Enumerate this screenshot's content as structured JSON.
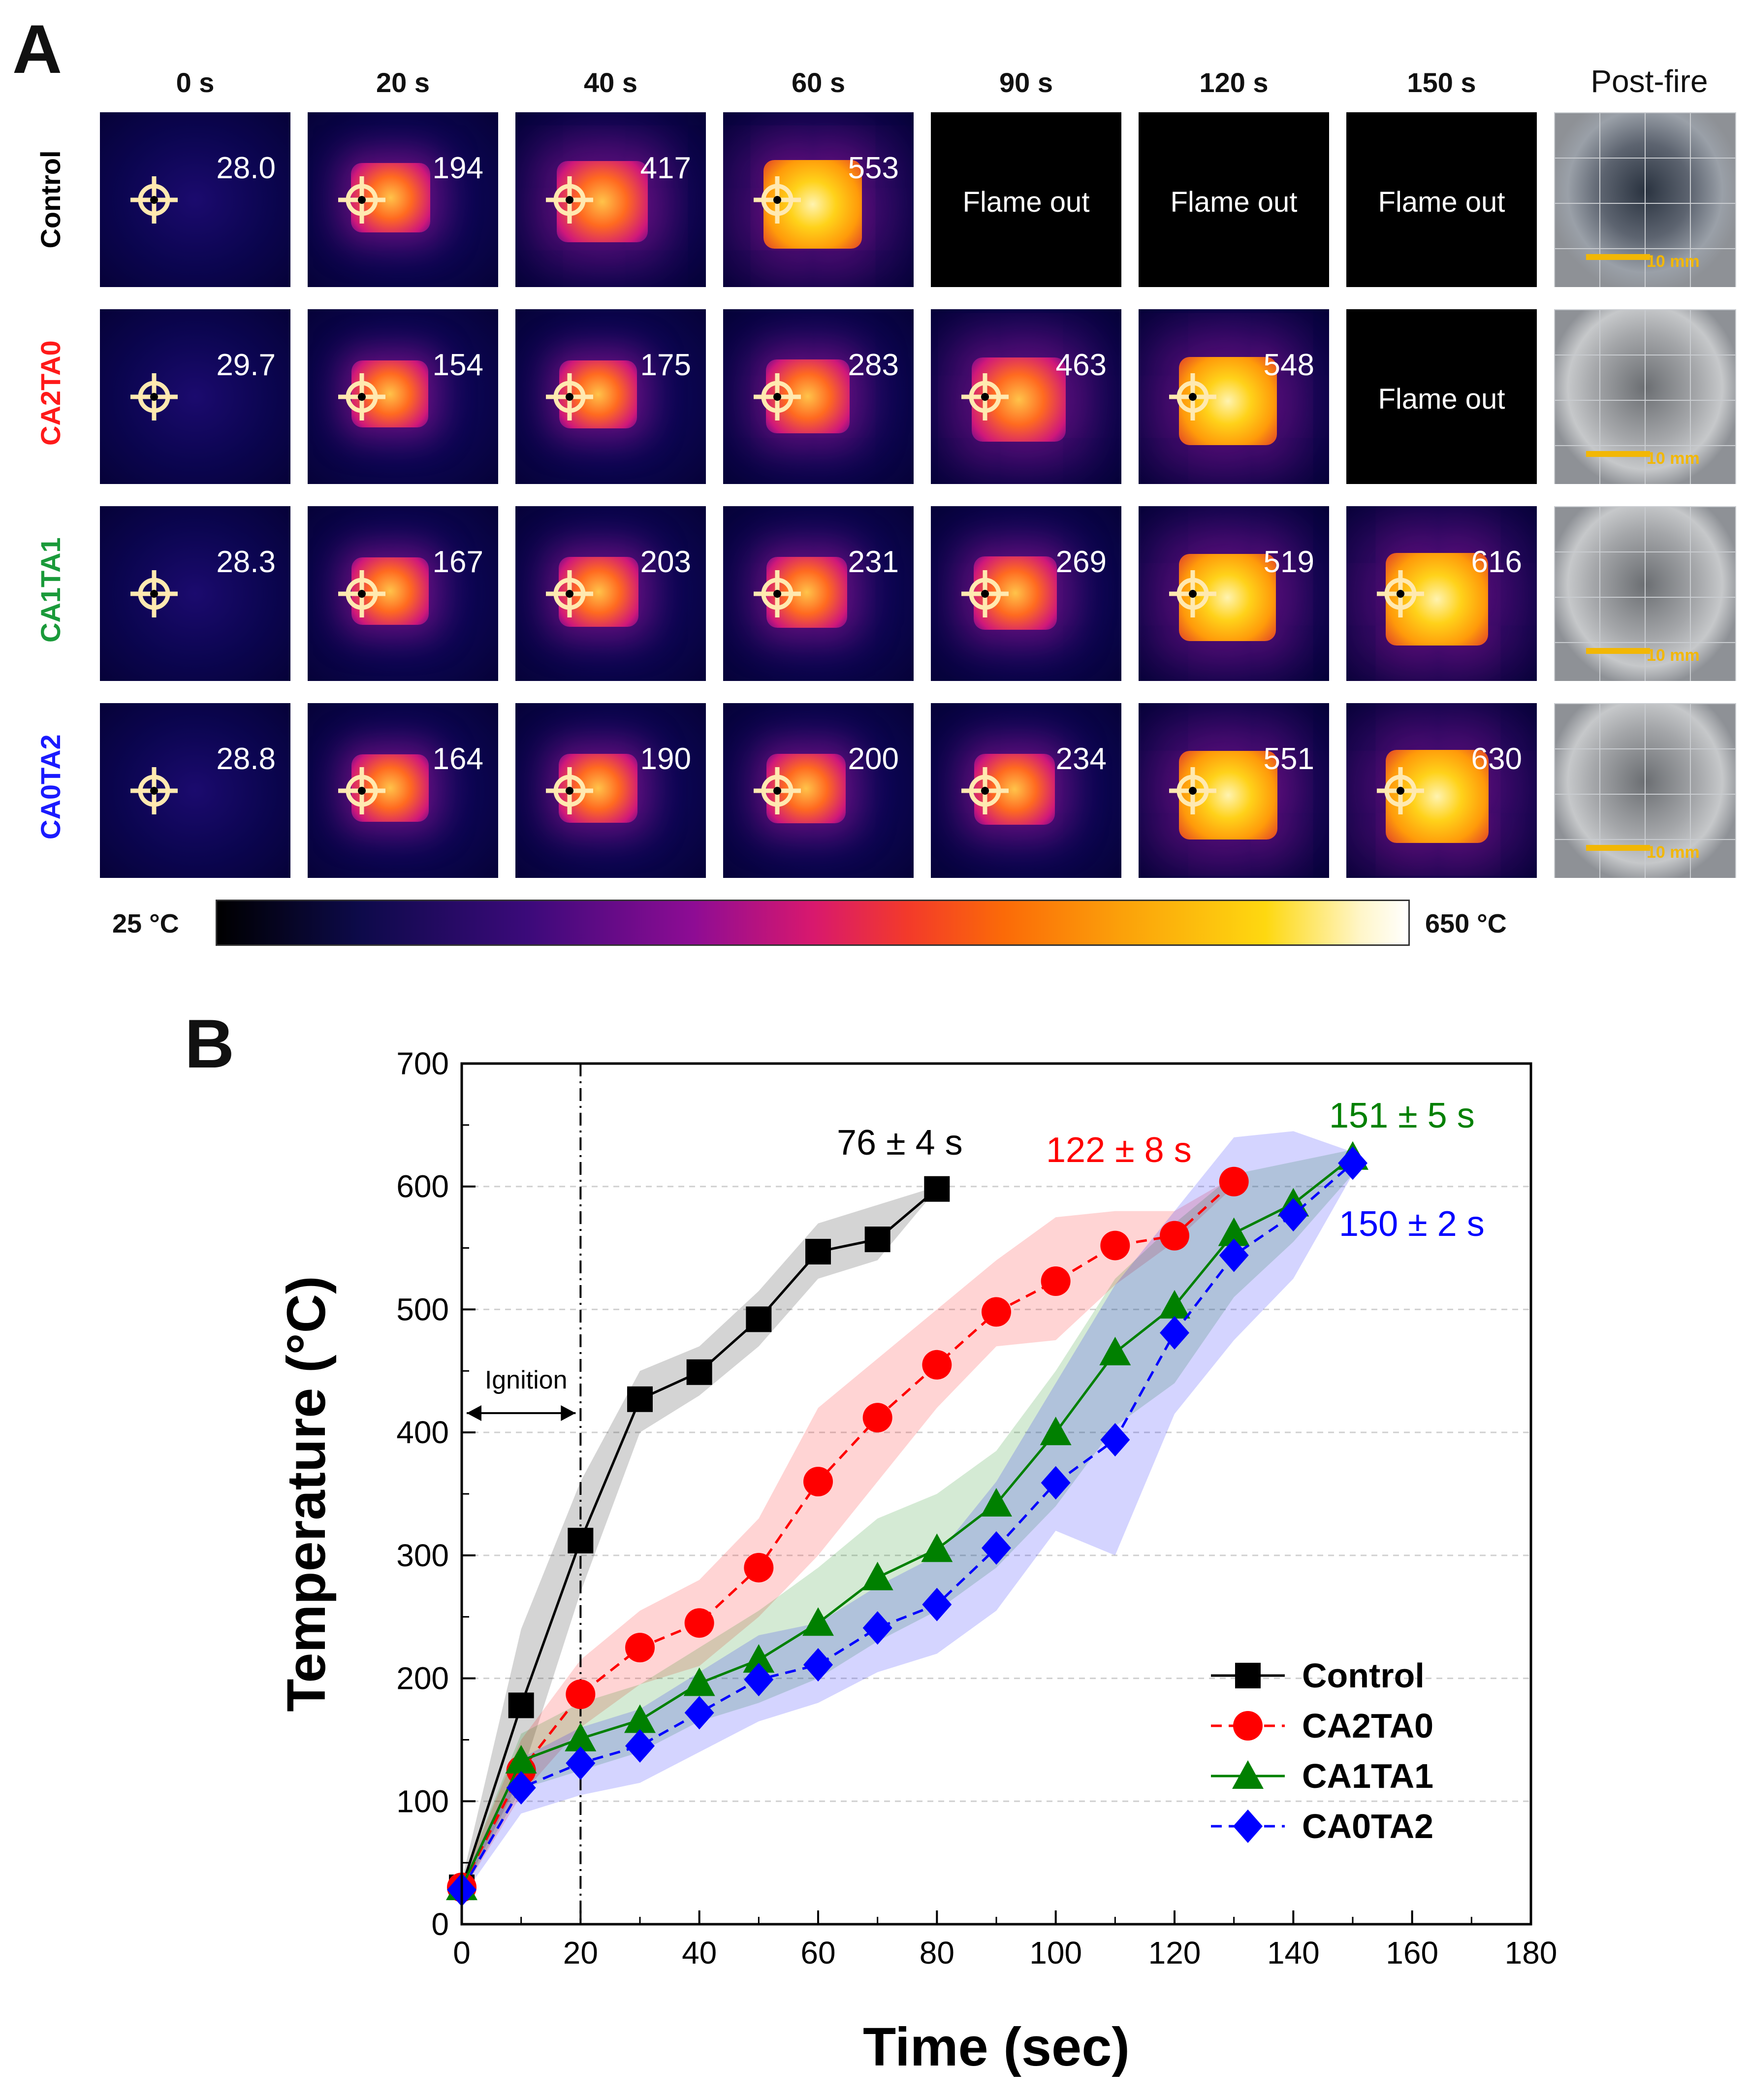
{
  "panel_a": {
    "label": "A",
    "time_headers": [
      "0 s",
      "20 s",
      "40 s",
      "60 s",
      "90 s",
      "120 s",
      "150 s",
      "Post-fire"
    ],
    "rows": [
      {
        "name": "Control",
        "color": "#000000",
        "cells": [
          "28.0",
          "194",
          "417",
          "553",
          "Flame out",
          "Flame out",
          "Flame out"
        ],
        "scale": "10 mm"
      },
      {
        "name": "CA2TA0",
        "color": "#ff1a1a",
        "cells": [
          "29.7",
          "154",
          "175",
          "283",
          "463",
          "548",
          "Flame out"
        ],
        "scale": "10 mm"
      },
      {
        "name": "CA1TA1",
        "color": "#1a9a3a",
        "cells": [
          "28.3",
          "167",
          "203",
          "231",
          "269",
          "519",
          "616"
        ],
        "scale": "10 mm"
      },
      {
        "name": "CA0TA2",
        "color": "#1a1aff",
        "cells": [
          "28.8",
          "164",
          "190",
          "200",
          "234",
          "551",
          "630"
        ],
        "scale": "10 mm"
      }
    ],
    "colorbar": {
      "min_label": "25 °C",
      "max_label": "650 °C"
    }
  },
  "panel_b": {
    "label": "B"
  },
  "chart_data": {
    "type": "line",
    "xlabel": "Time (sec)",
    "ylabel": "Temperature (°C)",
    "xlim": [
      0,
      180
    ],
    "ylim": [
      0,
      700
    ],
    "xticks": [
      0,
      20,
      40,
      60,
      80,
      100,
      120,
      140,
      160,
      180
    ],
    "yticks": [
      0,
      100,
      200,
      300,
      400,
      500,
      600,
      700
    ],
    "grid": "horizontal dashed",
    "legend_position": "bottom-right",
    "vline": {
      "x": 20,
      "label": "Ignition"
    },
    "series": [
      {
        "name": "Control",
        "color": "#000000",
        "marker": "square",
        "linestyle": "solid",
        "x": [
          0,
          10,
          20,
          30,
          40,
          50,
          60,
          70,
          80
        ],
        "y": [
          30,
          178,
          312,
          427,
          449,
          492,
          547,
          557,
          598
        ],
        "band_low": [
          25,
          120,
          270,
          400,
          430,
          470,
          525,
          540,
          598
        ],
        "band_high": [
          35,
          240,
          360,
          450,
          470,
          515,
          570,
          585,
          600
        ],
        "annotation": "76 ± 4 s"
      },
      {
        "name": "CA2TA0",
        "color": "#ff0000",
        "marker": "circle",
        "linestyle": "dashed",
        "x": [
          0,
          10,
          20,
          30,
          40,
          50,
          60,
          70,
          80,
          90,
          100,
          110,
          120,
          130
        ],
        "y": [
          30,
          125,
          187,
          225,
          245,
          290,
          360,
          412,
          455,
          498,
          523,
          552,
          560,
          604
        ],
        "band_low": [
          25,
          105,
          160,
          195,
          210,
          250,
          300,
          360,
          420,
          470,
          475,
          520,
          555,
          600
        ],
        "band_high": [
          35,
          150,
          215,
          255,
          280,
          330,
          420,
          460,
          500,
          540,
          575,
          580,
          580,
          608
        ],
        "annotation": "122 ± 8 s"
      },
      {
        "name": "CA1TA1",
        "color": "#008000",
        "marker": "triangle",
        "linestyle": "solid",
        "x": [
          0,
          10,
          20,
          30,
          40,
          50,
          60,
          70,
          80,
          90,
          100,
          110,
          120,
          130,
          140,
          150
        ],
        "y": [
          30,
          133,
          151,
          166,
          196,
          215,
          245,
          282,
          305,
          342,
          400,
          465,
          503,
          562,
          586,
          624
        ],
        "band_low": [
          25,
          110,
          125,
          140,
          165,
          180,
          200,
          230,
          255,
          290,
          340,
          405,
          440,
          510,
          555,
          610
        ],
        "band_high": [
          35,
          155,
          180,
          195,
          225,
          255,
          290,
          330,
          350,
          385,
          450,
          525,
          570,
          610,
          620,
          630
        ],
        "annotation": "151 ± 5 s"
      },
      {
        "name": "CA0TA2",
        "color": "#0000ff",
        "marker": "diamond",
        "linestyle": "dashed",
        "x": [
          0,
          10,
          20,
          30,
          40,
          50,
          60,
          70,
          80,
          90,
          100,
          110,
          120,
          130,
          140,
          150
        ],
        "y": [
          28,
          111,
          131,
          145,
          172,
          199,
          211,
          241,
          260,
          306,
          359,
          394,
          481,
          544,
          577,
          619
        ],
        "band_low": [
          22,
          90,
          105,
          115,
          140,
          165,
          180,
          205,
          220,
          255,
          320,
          300,
          415,
          475,
          525,
          610
        ],
        "band_high": [
          34,
          135,
          160,
          175,
          205,
          235,
          245,
          275,
          300,
          360,
          440,
          520,
          580,
          640,
          645,
          628
        ],
        "annotation": "150 ± 2 s"
      }
    ]
  }
}
